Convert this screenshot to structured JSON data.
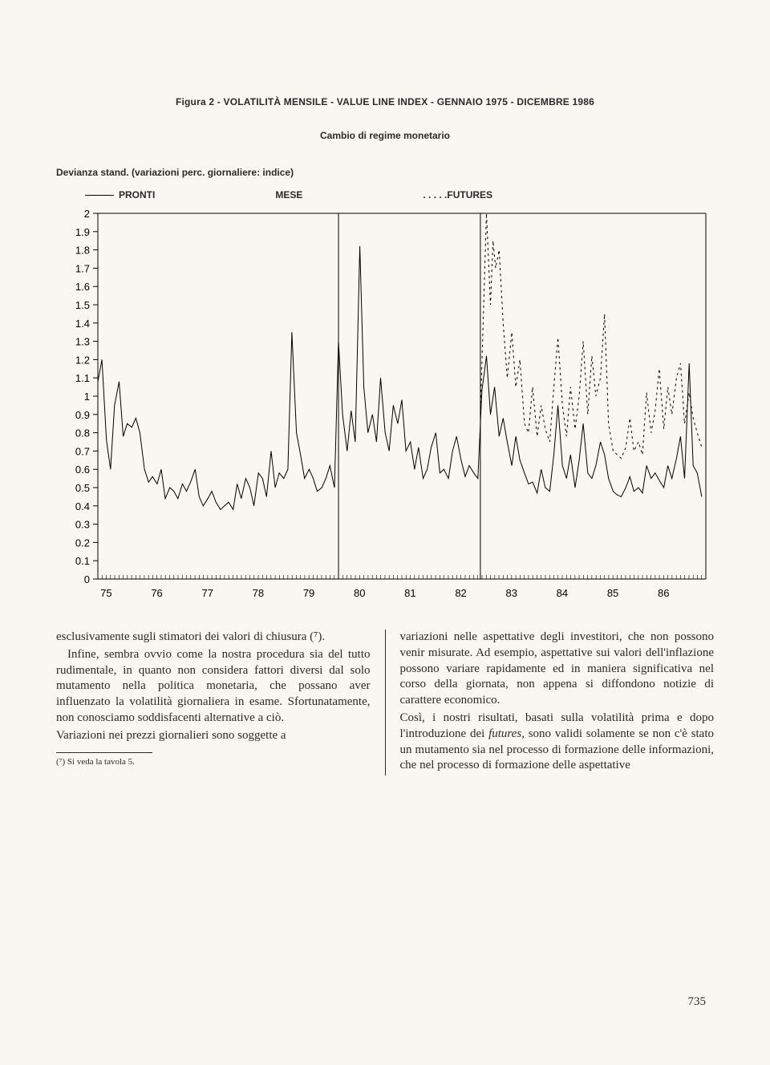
{
  "figure": {
    "title": "Figura 2 - VOLATILITÀ MENSILE - VALUE LINE INDEX - GENNAIO 1975 - DICEMBRE 1986",
    "subtitle": "Cambio di regime monetario",
    "axis_caption": "Devianza stand. (variazioni perc. giornaliere: indice)",
    "legend": {
      "pronti": "PRONTI",
      "mese": "MESE",
      "futures": ". . . . .FUTURES"
    }
  },
  "chart": {
    "type": "line",
    "background_color": "#f9f7f2",
    "axis_color": "#000000",
    "line_color": "#000000",
    "futures_color": "#000000",
    "futures_dash": "3,4",
    "line_width": 1.0,
    "ylim": [
      0,
      2.0
    ],
    "ytick_step": 0.1,
    "yticks": [
      0,
      0.1,
      0.2,
      0.3,
      0.4,
      0.5,
      0.6,
      0.7,
      0.8,
      0.9,
      1,
      1.1,
      1.2,
      1.3,
      1.4,
      1.5,
      1.6,
      1.7,
      1.8,
      1.9,
      2
    ],
    "xlim": [
      1975,
      1987
    ],
    "xticks": [
      75,
      76,
      77,
      78,
      79,
      80,
      81,
      82,
      83,
      84,
      85,
      86
    ],
    "x_minor_per_year": 12,
    "tick_fontsize": 13,
    "vertical_markers": [
      1979.75,
      1982.55
    ],
    "series_pronti": [
      [
        1975.0,
        1.08
      ],
      [
        1975.08,
        1.2
      ],
      [
        1975.17,
        0.76
      ],
      [
        1975.25,
        0.6
      ],
      [
        1975.33,
        0.95
      ],
      [
        1975.42,
        1.08
      ],
      [
        1975.5,
        0.78
      ],
      [
        1975.58,
        0.85
      ],
      [
        1975.67,
        0.83
      ],
      [
        1975.75,
        0.88
      ],
      [
        1975.83,
        0.8
      ],
      [
        1975.92,
        0.6
      ],
      [
        1976.0,
        0.53
      ],
      [
        1976.08,
        0.56
      ],
      [
        1976.17,
        0.52
      ],
      [
        1976.25,
        0.6
      ],
      [
        1976.33,
        0.44
      ],
      [
        1976.42,
        0.5
      ],
      [
        1976.5,
        0.48
      ],
      [
        1976.58,
        0.44
      ],
      [
        1976.67,
        0.52
      ],
      [
        1976.75,
        0.48
      ],
      [
        1976.83,
        0.53
      ],
      [
        1976.92,
        0.6
      ],
      [
        1977.0,
        0.45
      ],
      [
        1977.08,
        0.4
      ],
      [
        1977.17,
        0.44
      ],
      [
        1977.25,
        0.48
      ],
      [
        1977.33,
        0.42
      ],
      [
        1977.42,
        0.38
      ],
      [
        1977.5,
        0.4
      ],
      [
        1977.58,
        0.42
      ],
      [
        1977.67,
        0.38
      ],
      [
        1977.75,
        0.52
      ],
      [
        1977.83,
        0.44
      ],
      [
        1977.92,
        0.55
      ],
      [
        1978.0,
        0.5
      ],
      [
        1978.08,
        0.4
      ],
      [
        1978.17,
        0.58
      ],
      [
        1978.25,
        0.55
      ],
      [
        1978.33,
        0.45
      ],
      [
        1978.42,
        0.7
      ],
      [
        1978.5,
        0.5
      ],
      [
        1978.58,
        0.58
      ],
      [
        1978.67,
        0.55
      ],
      [
        1978.75,
        0.6
      ],
      [
        1978.83,
        1.35
      ],
      [
        1978.92,
        0.8
      ],
      [
        1979.0,
        0.68
      ],
      [
        1979.08,
        0.55
      ],
      [
        1979.17,
        0.6
      ],
      [
        1979.25,
        0.55
      ],
      [
        1979.33,
        0.48
      ],
      [
        1979.42,
        0.5
      ],
      [
        1979.5,
        0.55
      ],
      [
        1979.58,
        0.62
      ],
      [
        1979.67,
        0.5
      ],
      [
        1979.75,
        1.3
      ],
      [
        1979.83,
        0.9
      ],
      [
        1979.92,
        0.7
      ],
      [
        1980.0,
        0.92
      ],
      [
        1980.08,
        0.75
      ],
      [
        1980.17,
        1.82
      ],
      [
        1980.25,
        1.05
      ],
      [
        1980.33,
        0.8
      ],
      [
        1980.42,
        0.9
      ],
      [
        1980.5,
        0.75
      ],
      [
        1980.58,
        1.1
      ],
      [
        1980.67,
        0.8
      ],
      [
        1980.75,
        0.7
      ],
      [
        1980.83,
        0.95
      ],
      [
        1980.92,
        0.85
      ],
      [
        1981.0,
        0.98
      ],
      [
        1981.08,
        0.7
      ],
      [
        1981.17,
        0.75
      ],
      [
        1981.25,
        0.6
      ],
      [
        1981.33,
        0.72
      ],
      [
        1981.42,
        0.55
      ],
      [
        1981.5,
        0.6
      ],
      [
        1981.58,
        0.72
      ],
      [
        1981.67,
        0.8
      ],
      [
        1981.75,
        0.58
      ],
      [
        1981.83,
        0.6
      ],
      [
        1981.92,
        0.55
      ],
      [
        1982.0,
        0.7
      ],
      [
        1982.08,
        0.78
      ],
      [
        1982.17,
        0.65
      ],
      [
        1982.25,
        0.56
      ],
      [
        1982.33,
        0.62
      ],
      [
        1982.42,
        0.58
      ],
      [
        1982.5,
        0.55
      ],
      [
        1982.58,
        1.03
      ],
      [
        1982.67,
        1.22
      ],
      [
        1982.75,
        0.9
      ],
      [
        1982.83,
        1.05
      ],
      [
        1982.92,
        0.78
      ],
      [
        1983.0,
        0.88
      ],
      [
        1983.08,
        0.75
      ],
      [
        1983.17,
        0.62
      ],
      [
        1983.25,
        0.78
      ],
      [
        1983.33,
        0.65
      ],
      [
        1983.42,
        0.58
      ],
      [
        1983.5,
        0.52
      ],
      [
        1983.58,
        0.53
      ],
      [
        1983.67,
        0.47
      ],
      [
        1983.75,
        0.6
      ],
      [
        1983.83,
        0.5
      ],
      [
        1983.92,
        0.48
      ],
      [
        1984.0,
        0.68
      ],
      [
        1984.08,
        0.95
      ],
      [
        1984.17,
        0.62
      ],
      [
        1984.25,
        0.55
      ],
      [
        1984.33,
        0.68
      ],
      [
        1984.42,
        0.5
      ],
      [
        1984.5,
        0.65
      ],
      [
        1984.58,
        0.85
      ],
      [
        1984.67,
        0.58
      ],
      [
        1984.75,
        0.55
      ],
      [
        1984.83,
        0.62
      ],
      [
        1984.92,
        0.75
      ],
      [
        1985.0,
        0.68
      ],
      [
        1985.08,
        0.55
      ],
      [
        1985.17,
        0.48
      ],
      [
        1985.25,
        0.46
      ],
      [
        1985.33,
        0.45
      ],
      [
        1985.42,
        0.5
      ],
      [
        1985.5,
        0.56
      ],
      [
        1985.58,
        0.48
      ],
      [
        1985.67,
        0.5
      ],
      [
        1985.75,
        0.47
      ],
      [
        1985.83,
        0.62
      ],
      [
        1985.92,
        0.55
      ],
      [
        1986.0,
        0.58
      ],
      [
        1986.08,
        0.54
      ],
      [
        1986.17,
        0.5
      ],
      [
        1986.25,
        0.62
      ],
      [
        1986.33,
        0.55
      ],
      [
        1986.42,
        0.66
      ],
      [
        1986.5,
        0.78
      ],
      [
        1986.58,
        0.55
      ],
      [
        1986.67,
        1.18
      ],
      [
        1986.75,
        0.62
      ],
      [
        1986.83,
        0.58
      ],
      [
        1986.92,
        0.45
      ]
    ],
    "series_futures": [
      [
        1982.55,
        0.9
      ],
      [
        1982.67,
        2.0
      ],
      [
        1982.75,
        1.5
      ],
      [
        1982.8,
        1.85
      ],
      [
        1982.85,
        1.7
      ],
      [
        1982.92,
        1.8
      ],
      [
        1983.0,
        1.4
      ],
      [
        1983.08,
        1.1
      ],
      [
        1983.17,
        1.35
      ],
      [
        1983.25,
        1.05
      ],
      [
        1983.33,
        1.2
      ],
      [
        1983.42,
        0.85
      ],
      [
        1983.5,
        0.8
      ],
      [
        1983.58,
        1.05
      ],
      [
        1983.67,
        0.78
      ],
      [
        1983.75,
        0.95
      ],
      [
        1983.83,
        0.82
      ],
      [
        1983.92,
        0.75
      ],
      [
        1984.0,
        1.05
      ],
      [
        1984.08,
        1.32
      ],
      [
        1984.17,
        0.95
      ],
      [
        1984.25,
        0.78
      ],
      [
        1984.33,
        1.05
      ],
      [
        1984.42,
        0.82
      ],
      [
        1984.5,
        1.0
      ],
      [
        1984.58,
        1.3
      ],
      [
        1984.67,
        0.9
      ],
      [
        1984.75,
        1.22
      ],
      [
        1984.83,
        1.0
      ],
      [
        1984.92,
        1.1
      ],
      [
        1985.0,
        1.45
      ],
      [
        1985.08,
        0.85
      ],
      [
        1985.17,
        0.7
      ],
      [
        1985.25,
        0.68
      ],
      [
        1985.33,
        0.66
      ],
      [
        1985.42,
        0.72
      ],
      [
        1985.5,
        0.88
      ],
      [
        1985.58,
        0.7
      ],
      [
        1985.67,
        0.75
      ],
      [
        1985.75,
        0.68
      ],
      [
        1985.83,
        1.02
      ],
      [
        1985.92,
        0.8
      ],
      [
        1986.0,
        0.92
      ],
      [
        1986.08,
        1.15
      ],
      [
        1986.17,
        0.82
      ],
      [
        1986.25,
        1.05
      ],
      [
        1986.33,
        0.9
      ],
      [
        1986.42,
        1.1
      ],
      [
        1986.5,
        1.18
      ],
      [
        1986.58,
        0.85
      ],
      [
        1986.67,
        1.02
      ],
      [
        1986.75,
        0.88
      ],
      [
        1986.83,
        0.8
      ],
      [
        1986.92,
        0.72
      ]
    ]
  },
  "body": {
    "left": {
      "p1": "esclusivamente sugli stimatori dei valori di chiusura (⁷).",
      "p2": "Infine, sembra ovvio come la nostra procedura sia del tutto rudimentale, in quanto non considera fattori diversi dal solo mutamento nella politica monetaria, che possano aver influenzato la volatilità giornaliera in esame. Sfortunatamente, non conosciamo soddisfacenti alternative a ciò.",
      "p3": "Variazioni nei prezzi giornalieri sono soggette a",
      "footnote": "(⁷) Si veda la tavola 5."
    },
    "right": {
      "p1": "variazioni nelle aspettative degli investitori, che non possono venir misurate. Ad esempio, aspettative sui valori dell'inflazione possono variare rapidamente ed in maniera significativa nel corso della giornata, non appena si diffondono notizie di carattere economico.",
      "p2a": "Così, i nostri risultati, basati sulla volatilità prima e dopo l'introduzione dei ",
      "p2_it": "futures",
      "p2b": ", sono validi solamente se non c'è stato un mutamento sia nel processo di formazione delle informazioni, che nel processo di formazione delle aspettative"
    }
  },
  "page_number": "735"
}
